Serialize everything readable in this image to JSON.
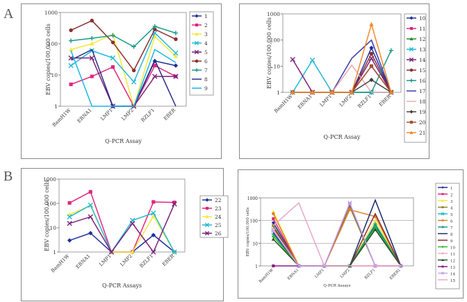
{
  "labels": {
    "panel_a": "A",
    "panel_b": "B"
  },
  "chart_data": [
    {
      "id": "c1",
      "type": "line",
      "yscale": "log",
      "ylim": [
        1,
        1000
      ],
      "ylabel": "EBV copies/100,000 cells",
      "xlabel": "Q-PCR Assay",
      "categories": [
        "BamH1W",
        "EBNA1",
        "LMP1",
        "LMP2",
        "BZLF1",
        "EBER"
      ],
      "yticks": [
        "1",
        "10",
        "100",
        "1000"
      ],
      "series": [
        {
          "name": "1",
          "color": "#1f2f9a",
          "marker": "diamond",
          "values": [
            null,
            null,
            1,
            1,
            28,
            20
          ]
        },
        {
          "name": "2",
          "color": "#e0267c",
          "marker": "square",
          "values": [
            5,
            9,
            18,
            1,
            20,
            9
          ]
        },
        {
          "name": "3",
          "color": "#f4e93a",
          "marker": "triangle",
          "values": [
            65,
            100,
            200,
            1,
            170,
            40
          ]
        },
        {
          "name": "4",
          "color": "#22b8d8",
          "marker": "x",
          "values": [
            20,
            60,
            35,
            6,
            220,
            50
          ]
        },
        {
          "name": "5",
          "color": "#7a1f7a",
          "marker": "x",
          "values": [
            35,
            35,
            1,
            1,
            9,
            9
          ]
        },
        {
          "name": "6",
          "color": "#8b2e2e",
          "marker": "circle",
          "values": [
            270,
            550,
            110,
            14,
            290,
            140
          ]
        },
        {
          "name": "7",
          "color": "#1a9a8a",
          "marker": "plus",
          "values": [
            125,
            150,
            185,
            80,
            360,
            220
          ]
        },
        {
          "name": "8",
          "color": "#2a2a8a",
          "marker": "none",
          "values": [
            30,
            65,
            1,
            1,
            30,
            1
          ]
        },
        {
          "name": "9",
          "color": "#19b6e8",
          "marker": "none",
          "values": [
            60,
            1,
            1,
            1,
            65,
            25
          ]
        }
      ]
    },
    {
      "id": "c2",
      "type": "line",
      "yscale": "log",
      "ylim": [
        1,
        1000
      ],
      "ylabel": "EBV copies/100,000 cells",
      "xlabel": "Q-PCR Assay",
      "categories": [
        "BamH1W",
        "EBNA1",
        "LMP1",
        "LMP2",
        "BZLF1",
        "EBER"
      ],
      "yticks": [
        "1",
        "10",
        "100",
        "1000"
      ],
      "series": [
        {
          "name": "10",
          "color": "#1f2f9a",
          "marker": "diamond",
          "values": [
            1,
            1,
            1,
            1,
            50,
            1
          ]
        },
        {
          "name": "11",
          "color": "#e0267c",
          "marker": "square",
          "values": [
            1,
            1,
            1,
            1,
            10,
            1
          ]
        },
        {
          "name": "12",
          "color": "#2a8a2a",
          "marker": "triangle",
          "values": [
            1,
            1,
            1,
            1,
            1,
            1
          ]
        },
        {
          "name": "13",
          "color": "#22b8d8",
          "marker": "x",
          "values": [
            1,
            17,
            1,
            1,
            1,
            1
          ]
        },
        {
          "name": "14",
          "color": "#7a1f7a",
          "marker": "x",
          "values": [
            18,
            1,
            1,
            1,
            20,
            1
          ]
        },
        {
          "name": "15",
          "color": "#8b2e2e",
          "marker": "circle",
          "values": [
            1,
            1,
            1,
            1,
            30,
            1
          ]
        },
        {
          "name": "16",
          "color": "#1a9a8a",
          "marker": "plus",
          "values": [
            1,
            1,
            1,
            1,
            1,
            40
          ]
        },
        {
          "name": "17",
          "color": "#3a3ab0",
          "marker": "none",
          "values": [
            1,
            1,
            1,
            20,
            100,
            1
          ]
        },
        {
          "name": "18",
          "color": "#f0a8a8",
          "marker": "none",
          "values": [
            1,
            1,
            1,
            11,
            1,
            1
          ]
        },
        {
          "name": "19",
          "color": "#444444",
          "marker": "diamond",
          "values": [
            1,
            1,
            1,
            1,
            3,
            1
          ]
        },
        {
          "name": "20",
          "color": "#a0522d",
          "marker": "square",
          "values": [
            1,
            1,
            1,
            1,
            10,
            1
          ]
        },
        {
          "name": "21",
          "color": "#f08a2a",
          "marker": "triangle",
          "values": [
            1,
            1,
            1,
            1,
            400,
            1
          ]
        }
      ]
    },
    {
      "id": "c3",
      "type": "line",
      "yscale": "log",
      "ylim": [
        1,
        1000
      ],
      "ylabel": "EBV copies/100,000 cells",
      "xlabel": "Q-PCR Assays",
      "categories": [
        "BamH1W",
        "EBNA1",
        "LMP1",
        "LMP2",
        "BZLF1",
        "EBER"
      ],
      "yticks": [
        "1",
        "10",
        "100",
        "1000"
      ],
      "series": [
        {
          "name": "22",
          "color": "#1f2f9a",
          "marker": "diamond",
          "values": [
            3,
            6,
            1,
            1,
            5,
            1
          ]
        },
        {
          "name": "23",
          "color": "#e0267c",
          "marker": "square",
          "values": [
            105,
            300,
            1,
            1,
            115,
            110
          ]
        },
        {
          "name": "24",
          "color": "#f4e93a",
          "marker": "triangle",
          "values": [
            35,
            80,
            1,
            1,
            30,
            1
          ]
        },
        {
          "name": "25",
          "color": "#22b8d8",
          "marker": "x",
          "values": [
            28,
            85,
            1,
            20,
            40,
            1
          ]
        },
        {
          "name": "26",
          "color": "#7a1f7a",
          "marker": "x",
          "values": [
            15,
            28,
            1,
            15,
            1,
            95
          ]
        }
      ]
    },
    {
      "id": "c4",
      "type": "line",
      "yscale": "log",
      "ylim": [
        1,
        1000
      ],
      "ylabel": "EBV copies/100,000 cells",
      "xlabel": "Q-PCR Assays",
      "categories": [
        "BamH1W",
        "EBNA1",
        "LMP1",
        "LMP2",
        "BZLF1",
        "EBER1"
      ],
      "yticks": [
        "1",
        "10",
        "100",
        "1000"
      ],
      "series": [
        {
          "name": "1",
          "color": "#1f2f9a",
          "marker": "diamond",
          "values": [
            80,
            1,
            1,
            1,
            60,
            1
          ]
        },
        {
          "name": "2",
          "color": "#e0267c",
          "marker": "square",
          "values": [
            120,
            1,
            1,
            1,
            1,
            1
          ]
        },
        {
          "name": "3",
          "color": "#f4e93a",
          "marker": "triangle",
          "values": [
            250,
            1,
            1,
            1,
            100,
            1
          ]
        },
        {
          "name": "4",
          "color": "#8a8a2a",
          "marker": "square",
          "values": [
            60,
            1,
            1,
            400,
            1,
            1
          ]
        },
        {
          "name": "5",
          "color": "#22b8d8",
          "marker": "x",
          "values": [
            40,
            1,
            1,
            1,
            50,
            1
          ]
        },
        {
          "name": "6",
          "color": "#e08020",
          "marker": "circle",
          "values": [
            200,
            1,
            1,
            300,
            150,
            1
          ]
        },
        {
          "name": "7",
          "color": "#1a9a8a",
          "marker": "plus",
          "values": [
            25,
            1,
            1,
            1,
            70,
            1
          ]
        },
        {
          "name": "8",
          "color": "#1a2a6a",
          "marker": "none",
          "values": [
            30,
            1,
            1,
            1,
            800,
            1
          ]
        },
        {
          "name": "9",
          "color": "#8b2e2e",
          "marker": "none",
          "values": [
            50,
            1,
            1,
            1,
            200,
            1
          ]
        },
        {
          "name": "10",
          "color": "#2ab82a",
          "marker": "diamond",
          "values": [
            20,
            1,
            1,
            1,
            50,
            1
          ]
        },
        {
          "name": "11",
          "color": "#f0b0c0",
          "marker": "square",
          "values": [
            40,
            1,
            1,
            1,
            1,
            1
          ]
        },
        {
          "name": "12",
          "color": "#2a4a2a",
          "marker": "triangle",
          "values": [
            15,
            1,
            1,
            1,
            40,
            1
          ]
        },
        {
          "name": "13",
          "color": "#8a1a8a",
          "marker": "square",
          "values": [
            1,
            1,
            1,
            550,
            1,
            1
          ]
        },
        {
          "name": "14",
          "color": "#c8a8e8",
          "marker": "x",
          "values": [
            35,
            1,
            1,
            600,
            1,
            1
          ]
        },
        {
          "name": "15",
          "color": "#e8a8c8",
          "marker": "none",
          "values": [
            60,
            600,
            1,
            1,
            1,
            1
          ]
        }
      ]
    }
  ]
}
